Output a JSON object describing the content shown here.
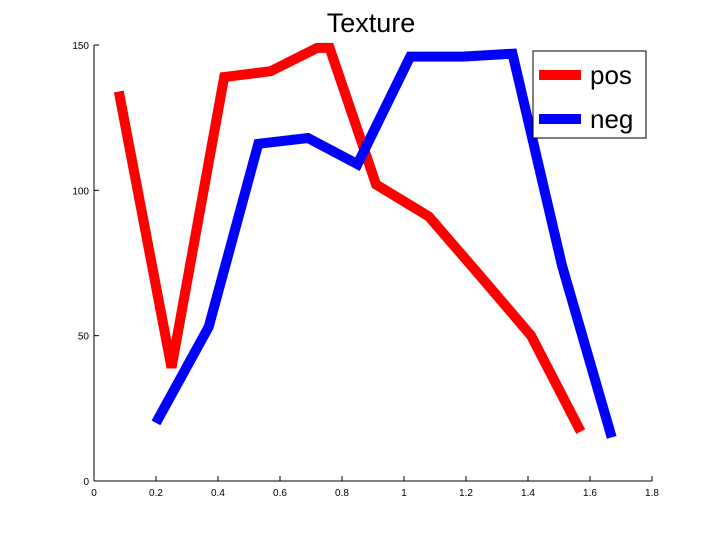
{
  "chart_data": {
    "type": "line",
    "title": "Texture",
    "xlabel": "",
    "ylabel": "",
    "xlim": [
      0,
      1.8
    ],
    "ylim": [
      0,
      150
    ],
    "xticks": [
      "0",
      "0.2",
      "0.4",
      "0.6",
      "0.8",
      "1",
      "1.2",
      "1.4",
      "1.6",
      "1.8"
    ],
    "yticks": [
      "0",
      "50",
      "100",
      "150"
    ],
    "grid": false,
    "legend_position": "top-right",
    "series": [
      {
        "name": "pos",
        "color": "#ff0000",
        "x": [
          0.08,
          0.25,
          0.42,
          0.57,
          0.72,
          0.76,
          0.91,
          1.08,
          1.25,
          1.41,
          1.57
        ],
        "y": [
          134,
          39,
          139,
          141,
          149,
          149,
          102,
          91,
          70,
          50,
          17
        ]
      },
      {
        "name": "neg",
        "color": "#0000ff",
        "x": [
          0.2,
          0.37,
          0.53,
          0.69,
          0.85,
          1.02,
          1.19,
          1.35,
          1.51,
          1.67
        ],
        "y": [
          20,
          53,
          116,
          118,
          109,
          146,
          146,
          147,
          74,
          15
        ]
      }
    ]
  }
}
